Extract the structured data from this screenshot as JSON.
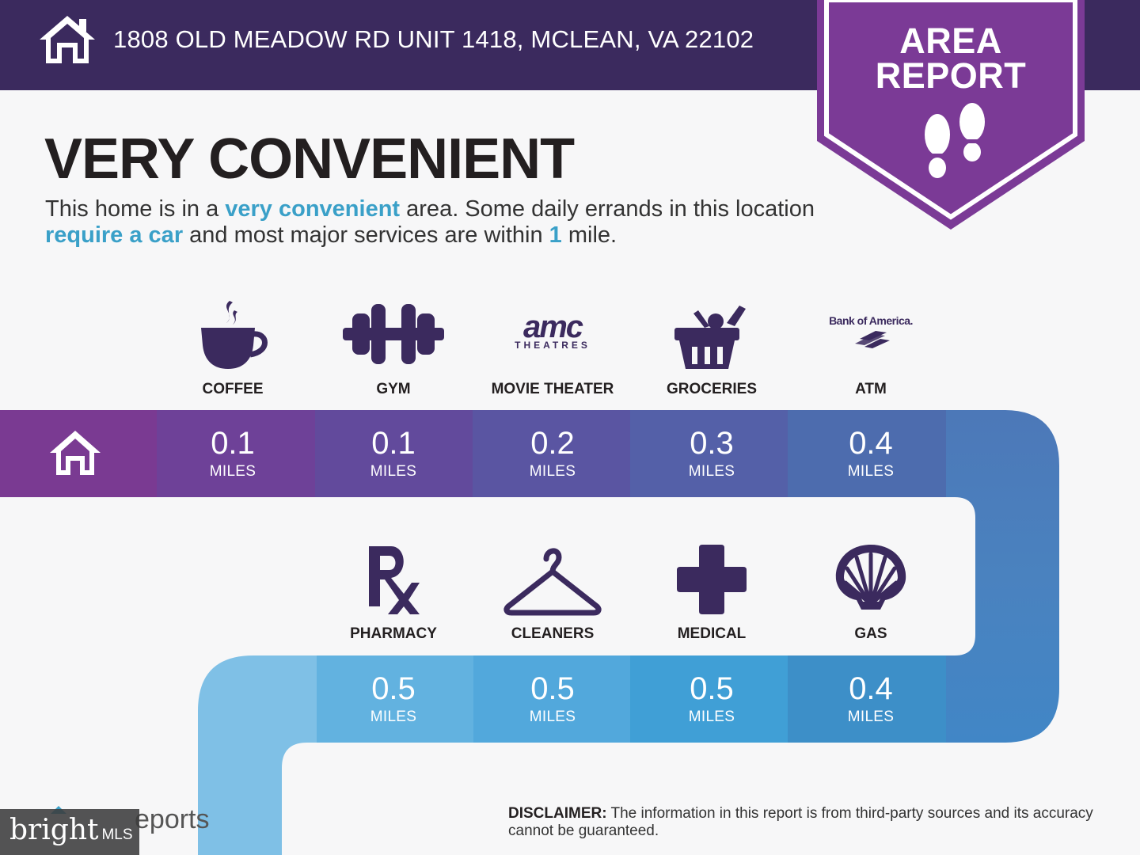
{
  "header": {
    "address": "1808 OLD MEADOW RD UNIT 1418, MCLEAN, VA 22102",
    "home_icon": "house-icon"
  },
  "badge": {
    "line1": "AREA",
    "line2": "REPORT",
    "icon": "footprints-icon"
  },
  "main": {
    "title": "VERY CONVENIENT",
    "description": {
      "p1": "This home is in a ",
      "h1": "very convenient",
      "p2": " area. Some daily errands in this location ",
      "h2": "require a car",
      "p3": " and most major services are within ",
      "h3": "1",
      "p4": " mile."
    }
  },
  "amenities_row1": [
    {
      "label": "COFFEE",
      "icon": "coffee-cup-icon",
      "distance": "0.1",
      "unit": "MILES"
    },
    {
      "label": "GYM",
      "icon": "dumbbell-icon",
      "distance": "0.1",
      "unit": "MILES"
    },
    {
      "label": "MOVIE THEATER",
      "icon": "amc-theatres-logo",
      "distance": "0.2",
      "unit": "MILES",
      "logo_main": "amc",
      "logo_sub": "THEATRES"
    },
    {
      "label": "GROCERIES",
      "icon": "grocery-basket-icon",
      "distance": "0.3",
      "unit": "MILES"
    },
    {
      "label": "ATM",
      "icon": "bank-of-america-logo",
      "distance": "0.4",
      "unit": "MILES",
      "logo_main": "Bank of America."
    }
  ],
  "amenities_row2": [
    {
      "label": "PHARMACY",
      "icon": "rx-icon",
      "distance": "0.5",
      "unit": "MILES"
    },
    {
      "label": "CLEANERS",
      "icon": "hanger-icon",
      "distance": "0.5",
      "unit": "MILES"
    },
    {
      "label": "MEDICAL",
      "icon": "medical-cross-icon",
      "distance": "0.5",
      "unit": "MILES"
    },
    {
      "label": "GAS",
      "icon": "shell-icon",
      "distance": "0.4",
      "unit": "MILES"
    }
  ],
  "footer": {
    "disclaimer_label": "DISCLAIMER:",
    "disclaimer_text": " The information in this report is from third-party sources and its accuracy cannot be guaranteed.",
    "brand_partial": "eports",
    "watermark_main": "bright",
    "watermark_sub": "MLS"
  },
  "colors": {
    "header_bg": "#3b2a5e",
    "badge": "#7b3a96",
    "highlight": "#3aa0c8",
    "row1_segments": [
      "#7a3a92",
      "#6e4198",
      "#624a9c",
      "#5858a3",
      "#4e6aac",
      "#4a82bf"
    ],
    "row2_segments": [
      "#7fc0e6",
      "#62b2e0",
      "#52a8dc",
      "#409fd6",
      "#3d8fc8",
      "#4a82bf"
    ]
  }
}
